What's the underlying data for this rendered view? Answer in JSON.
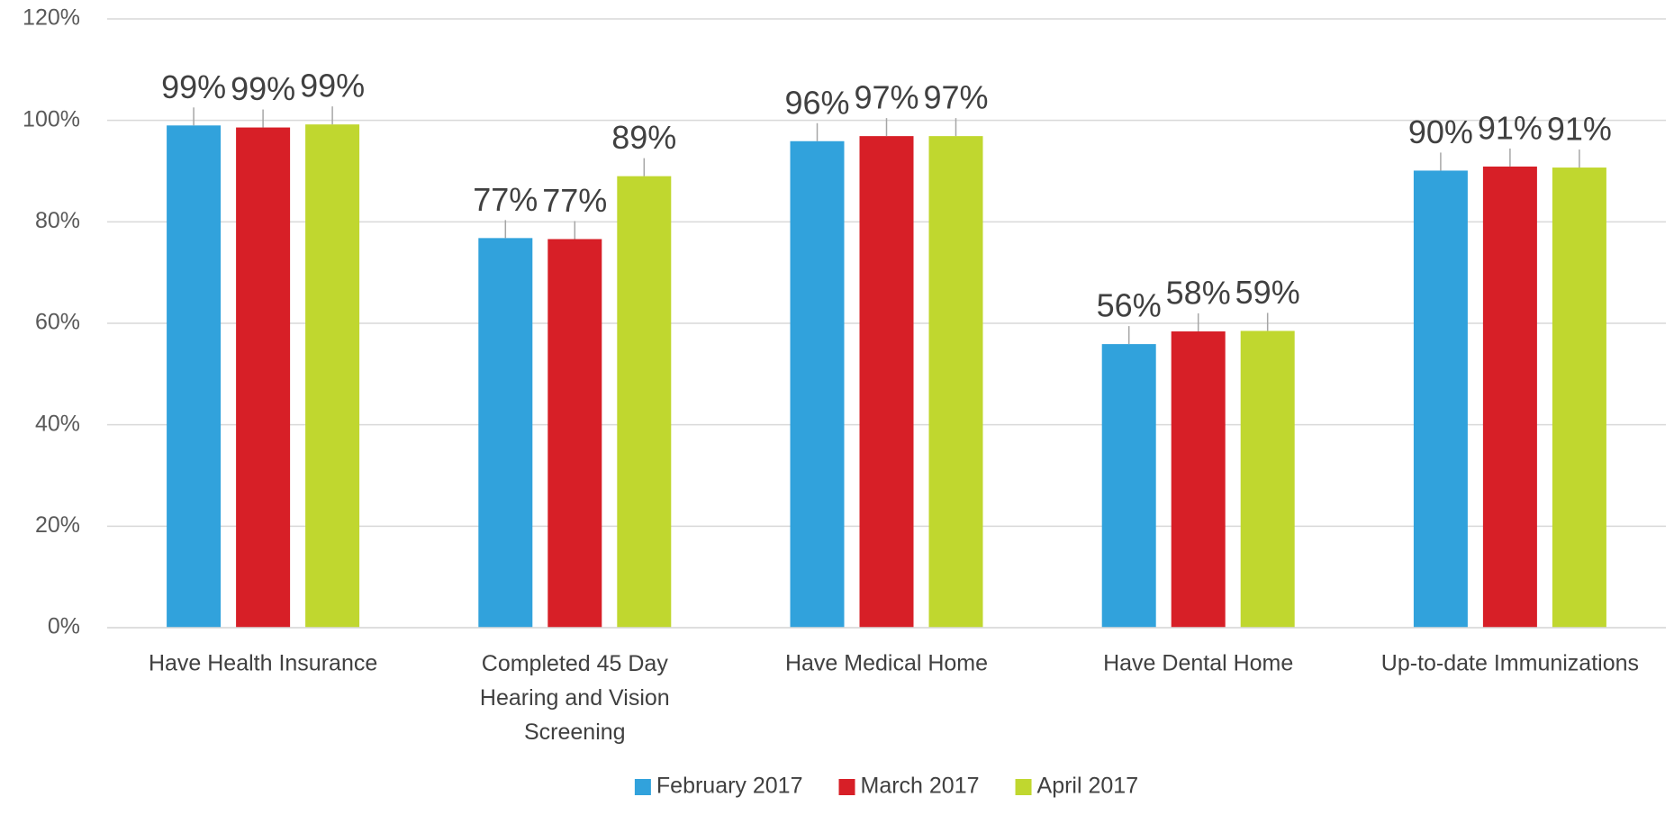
{
  "chart_data": {
    "type": "bar",
    "categories": [
      "Have Health Insurance",
      "Completed 45 Day Hearing and Vision Screening",
      "Have Medical Home",
      "Have Dental Home",
      "Up-to-date Immunizations"
    ],
    "series": [
      {
        "name": "February 2017",
        "color": "#31a2dc",
        "values": [
          99.0,
          76.8,
          95.9,
          55.9,
          90.1
        ],
        "value_labels": [
          "99%",
          "77%",
          "96%",
          "56%",
          "90%"
        ]
      },
      {
        "name": "March 2017",
        "color": "#d71f27",
        "values": [
          98.6,
          76.6,
          96.9,
          58.4,
          90.9
        ],
        "value_labels": [
          "99%",
          "77%",
          "97%",
          "58%",
          "91%"
        ]
      },
      {
        "name": "April 2017",
        "color": "#c0d72f",
        "values": [
          99.2,
          89.0,
          96.9,
          58.5,
          90.7
        ],
        "value_labels": [
          "99%",
          "89%",
          "97%",
          "59%",
          "91%"
        ]
      }
    ],
    "ylim": [
      0,
      120
    ],
    "yticks": [
      {
        "value": 0,
        "label": "0%"
      },
      {
        "value": 20,
        "label": "20%"
      },
      {
        "value": 40,
        "label": "40%"
      },
      {
        "value": 60,
        "label": "60%"
      },
      {
        "value": 80,
        "label": "80%"
      },
      {
        "value": 100,
        "label": "100%"
      },
      {
        "value": 120,
        "label": "120%"
      }
    ],
    "grid": true,
    "legend": "bottom"
  }
}
